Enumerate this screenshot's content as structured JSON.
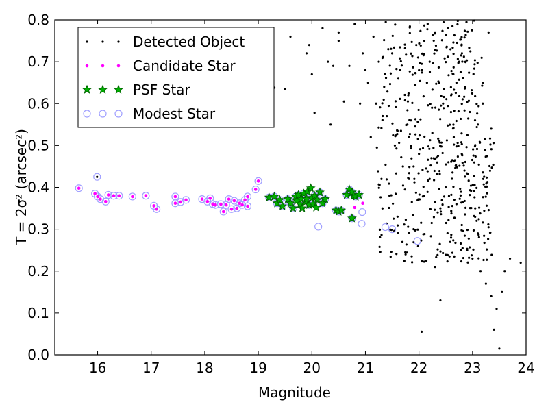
{
  "chart_data": {
    "type": "scatter",
    "xlabel": "Magnitude",
    "ylabel": "T = 2σ² (arcsec²)",
    "xlim": [
      15.2,
      24.0
    ],
    "ylim": [
      0.0,
      0.8
    ],
    "xticks": [
      "16",
      "17",
      "18",
      "19",
      "20",
      "21",
      "22",
      "23",
      "24"
    ],
    "yticks": [
      "0.0",
      "0.1",
      "0.2",
      "0.3",
      "0.4",
      "0.5",
      "0.6",
      "0.7",
      "0.8"
    ],
    "grid": false,
    "legend_position": "upper-left",
    "colors": {
      "detected": "#000000",
      "candidate": "#ff00ff",
      "psf_fill": "#00b000",
      "psf_edge": "#006400",
      "modest": "#a0a0ff"
    },
    "series": [
      {
        "name": "Detected Object",
        "marker": "dot",
        "note_density": "dense cloud of faint sources",
        "points": [
          [
            15.99,
            0.425
          ],
          [
            19.1,
            0.718
          ],
          [
            19.3,
            0.638
          ],
          [
            19.5,
            0.635
          ],
          [
            19.6,
            0.76
          ],
          [
            19.9,
            0.72
          ],
          [
            19.95,
            0.74
          ],
          [
            20.0,
            0.67
          ],
          [
            20.05,
            0.578
          ],
          [
            20.2,
            0.78
          ],
          [
            20.3,
            0.7
          ],
          [
            20.35,
            0.55
          ],
          [
            20.4,
            0.69
          ],
          [
            20.5,
            0.77
          ],
          [
            20.5,
            0.75
          ],
          [
            20.6,
            0.605
          ],
          [
            20.7,
            0.69
          ],
          [
            20.8,
            0.79
          ],
          [
            20.9,
            0.6
          ],
          [
            20.95,
            0.72
          ],
          [
            21.0,
            0.68
          ],
          [
            21.05,
            0.65
          ],
          [
            21.1,
            0.52
          ],
          [
            21.15,
            0.76
          ],
          [
            21.2,
            0.6
          ],
          [
            21.25,
            0.7
          ],
          [
            21.3,
            0.42
          ],
          [
            21.35,
            0.64
          ],
          [
            21.4,
            0.57
          ],
          [
            21.45,
            0.38
          ],
          [
            21.5,
            0.72
          ],
          [
            21.55,
            0.5
          ],
          [
            21.6,
            0.33
          ],
          [
            21.65,
            0.68
          ],
          [
            21.7,
            0.45
          ],
          [
            21.75,
            0.24
          ],
          [
            21.8,
            0.62
          ],
          [
            21.85,
            0.56
          ],
          [
            21.9,
            0.3
          ],
          [
            21.95,
            0.74
          ],
          [
            22.0,
            0.48
          ],
          [
            22.05,
            0.055
          ],
          [
            22.1,
            0.38
          ],
          [
            22.15,
            0.65
          ],
          [
            22.2,
            0.42
          ],
          [
            22.25,
            0.53
          ],
          [
            22.3,
            0.21
          ],
          [
            22.35,
            0.34
          ],
          [
            22.4,
            0.13
          ],
          [
            22.45,
            0.6
          ],
          [
            22.5,
            0.4
          ],
          [
            22.55,
            0.46
          ],
          [
            22.6,
            0.28
          ],
          [
            22.65,
            0.52
          ],
          [
            22.7,
            0.36
          ],
          [
            22.75,
            0.7
          ],
          [
            22.8,
            0.31
          ],
          [
            22.85,
            0.44
          ],
          [
            22.9,
            0.25
          ],
          [
            22.95,
            0.58
          ],
          [
            23.0,
            0.23
          ],
          [
            23.05,
            0.35
          ],
          [
            23.1,
            0.29
          ],
          [
            23.15,
            0.2
          ],
          [
            23.2,
            0.42
          ],
          [
            23.25,
            0.17
          ],
          [
            23.3,
            0.77
          ],
          [
            23.35,
            0.14
          ],
          [
            23.4,
            0.06
          ],
          [
            23.45,
            0.11
          ],
          [
            23.5,
            0.015
          ],
          [
            23.55,
            0.15
          ],
          [
            23.6,
            0.2
          ],
          [
            23.7,
            0.23
          ],
          [
            23.9,
            0.22
          ],
          [
            22.1,
            0.75
          ],
          [
            22.3,
            0.77
          ],
          [
            22.2,
            0.7
          ],
          [
            21.9,
            0.45
          ],
          [
            22.4,
            0.35
          ],
          [
            22.6,
            0.62
          ],
          [
            22.8,
            0.48
          ],
          [
            23.1,
            0.55
          ],
          [
            23.35,
            0.54
          ],
          [
            22.7,
            0.65
          ]
        ]
      },
      {
        "name": "Candidate Star",
        "marker": "small-dot",
        "points": [
          [
            15.65,
            0.398
          ],
          [
            15.95,
            0.385
          ],
          [
            16.0,
            0.378
          ],
          [
            16.05,
            0.372
          ],
          [
            16.15,
            0.366
          ],
          [
            16.2,
            0.382
          ],
          [
            16.3,
            0.38
          ],
          [
            16.4,
            0.38
          ],
          [
            16.65,
            0.378
          ],
          [
            16.9,
            0.38
          ],
          [
            17.05,
            0.356
          ],
          [
            17.1,
            0.348
          ],
          [
            17.45,
            0.362
          ],
          [
            17.45,
            0.378
          ],
          [
            17.55,
            0.365
          ],
          [
            17.65,
            0.37
          ],
          [
            17.95,
            0.372
          ],
          [
            18.05,
            0.366
          ],
          [
            18.1,
            0.374
          ],
          [
            18.15,
            0.36
          ],
          [
            18.2,
            0.358
          ],
          [
            18.3,
            0.36
          ],
          [
            18.35,
            0.342
          ],
          [
            18.4,
            0.358
          ],
          [
            18.45,
            0.372
          ],
          [
            18.5,
            0.348
          ],
          [
            18.55,
            0.368
          ],
          [
            18.6,
            0.35
          ],
          [
            18.65,
            0.362
          ],
          [
            18.7,
            0.358
          ],
          [
            18.75,
            0.37
          ],
          [
            18.8,
            0.378
          ],
          [
            18.8,
            0.355
          ],
          [
            18.95,
            0.395
          ],
          [
            19.0,
            0.415
          ],
          [
            20.8,
            0.352
          ],
          [
            20.95,
            0.362
          ]
        ]
      },
      {
        "name": "PSF Star",
        "marker": "star",
        "points": [
          [
            19.2,
            0.376
          ],
          [
            19.3,
            0.378
          ],
          [
            19.35,
            0.362
          ],
          [
            19.4,
            0.37
          ],
          [
            19.45,
            0.355
          ],
          [
            19.55,
            0.372
          ],
          [
            19.6,
            0.362
          ],
          [
            19.65,
            0.35
          ],
          [
            19.7,
            0.378
          ],
          [
            19.72,
            0.368
          ],
          [
            19.75,
            0.382
          ],
          [
            19.78,
            0.36
          ],
          [
            19.8,
            0.372
          ],
          [
            19.82,
            0.35
          ],
          [
            19.85,
            0.385
          ],
          [
            19.88,
            0.365
          ],
          [
            19.9,
            0.372
          ],
          [
            19.92,
            0.39
          ],
          [
            19.95,
            0.358
          ],
          [
            19.98,
            0.398
          ],
          [
            20.0,
            0.375
          ],
          [
            20.02,
            0.36
          ],
          [
            20.05,
            0.38
          ],
          [
            20.08,
            0.352
          ],
          [
            20.1,
            0.37
          ],
          [
            20.15,
            0.388
          ],
          [
            20.2,
            0.362
          ],
          [
            20.25,
            0.372
          ],
          [
            20.45,
            0.345
          ],
          [
            20.5,
            0.342
          ],
          [
            20.55,
            0.345
          ],
          [
            20.65,
            0.382
          ],
          [
            20.7,
            0.395
          ],
          [
            20.75,
            0.388
          ],
          [
            20.78,
            0.38
          ],
          [
            20.82,
            0.378
          ],
          [
            20.88,
            0.382
          ],
          [
            20.75,
            0.326
          ]
        ]
      },
      {
        "name": "Modest Star",
        "marker": "open-circle",
        "points": [
          [
            15.65,
            0.398
          ],
          [
            15.99,
            0.425
          ],
          [
            15.95,
            0.385
          ],
          [
            16.0,
            0.378
          ],
          [
            16.05,
            0.372
          ],
          [
            16.15,
            0.366
          ],
          [
            16.2,
            0.382
          ],
          [
            16.3,
            0.38
          ],
          [
            16.4,
            0.38
          ],
          [
            16.65,
            0.378
          ],
          [
            16.9,
            0.38
          ],
          [
            17.05,
            0.356
          ],
          [
            17.1,
            0.348
          ],
          [
            17.45,
            0.362
          ],
          [
            17.45,
            0.378
          ],
          [
            17.55,
            0.365
          ],
          [
            17.65,
            0.37
          ],
          [
            17.95,
            0.372
          ],
          [
            18.05,
            0.366
          ],
          [
            18.1,
            0.374
          ],
          [
            18.15,
            0.36
          ],
          [
            18.2,
            0.358
          ],
          [
            18.3,
            0.36
          ],
          [
            18.35,
            0.342
          ],
          [
            18.4,
            0.358
          ],
          [
            18.45,
            0.372
          ],
          [
            18.5,
            0.348
          ],
          [
            18.55,
            0.368
          ],
          [
            18.6,
            0.35
          ],
          [
            18.65,
            0.362
          ],
          [
            18.7,
            0.358
          ],
          [
            18.75,
            0.37
          ],
          [
            18.8,
            0.378
          ],
          [
            18.8,
            0.355
          ],
          [
            18.95,
            0.395
          ],
          [
            19.0,
            0.415
          ],
          [
            19.2,
            0.376
          ],
          [
            19.3,
            0.378
          ],
          [
            19.35,
            0.362
          ],
          [
            19.4,
            0.37
          ],
          [
            19.45,
            0.355
          ],
          [
            19.55,
            0.372
          ],
          [
            19.6,
            0.362
          ],
          [
            19.65,
            0.35
          ],
          [
            19.7,
            0.378
          ],
          [
            19.75,
            0.382
          ],
          [
            19.8,
            0.372
          ],
          [
            19.85,
            0.385
          ],
          [
            19.9,
            0.372
          ],
          [
            19.95,
            0.358
          ],
          [
            20.0,
            0.375
          ],
          [
            20.05,
            0.38
          ],
          [
            20.1,
            0.37
          ],
          [
            20.15,
            0.388
          ],
          [
            20.2,
            0.362
          ],
          [
            20.25,
            0.372
          ],
          [
            20.12,
            0.306
          ],
          [
            20.45,
            0.345
          ],
          [
            20.5,
            0.342
          ],
          [
            20.55,
            0.345
          ],
          [
            20.65,
            0.382
          ],
          [
            20.7,
            0.395
          ],
          [
            20.75,
            0.388
          ],
          [
            20.82,
            0.378
          ],
          [
            20.88,
            0.382
          ],
          [
            20.75,
            0.326
          ],
          [
            20.94,
            0.341
          ],
          [
            20.93,
            0.313
          ],
          [
            21.37,
            0.305
          ],
          [
            21.5,
            0.3
          ],
          [
            21.97,
            0.272
          ]
        ]
      }
    ]
  }
}
